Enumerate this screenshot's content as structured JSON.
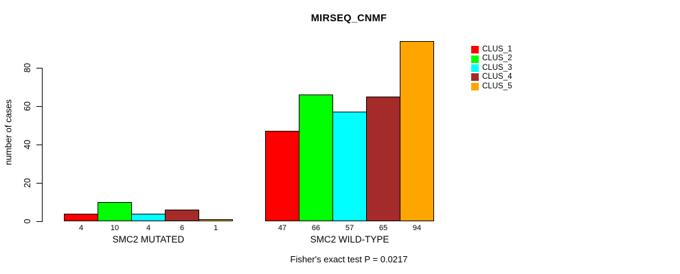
{
  "chart_data": {
    "type": "bar",
    "title": "MIRSEQ_CNMF",
    "xlabel": "",
    "ylabel": "number of cases",
    "ylim": [
      0,
      94
    ],
    "yticks": [
      0,
      20,
      40,
      60,
      80
    ],
    "grid": false,
    "legend_position": "right-outside",
    "categories": [
      "SMC2 MUTATED",
      "SMC2 WILD-TYPE"
    ],
    "series": [
      {
        "name": "CLUS_1",
        "color": "#FF0000",
        "values": [
          4,
          47
        ]
      },
      {
        "name": "CLUS_2",
        "color": "#00FF00",
        "values": [
          10,
          66
        ]
      },
      {
        "name": "CLUS_3",
        "color": "#00FFFF",
        "values": [
          4,
          57
        ]
      },
      {
        "name": "CLUS_4",
        "color": "#A52A2A",
        "values": [
          6,
          65
        ]
      },
      {
        "name": "CLUS_5",
        "color": "#FFA500",
        "values": [
          1,
          94
        ]
      }
    ],
    "bar_value_labels": [
      [
        "4",
        "10",
        "4",
        "6",
        "1"
      ],
      [
        "47",
        "66",
        "57",
        "65",
        "94"
      ]
    ],
    "annotation": "Fisher's exact test P = 0.0217"
  }
}
